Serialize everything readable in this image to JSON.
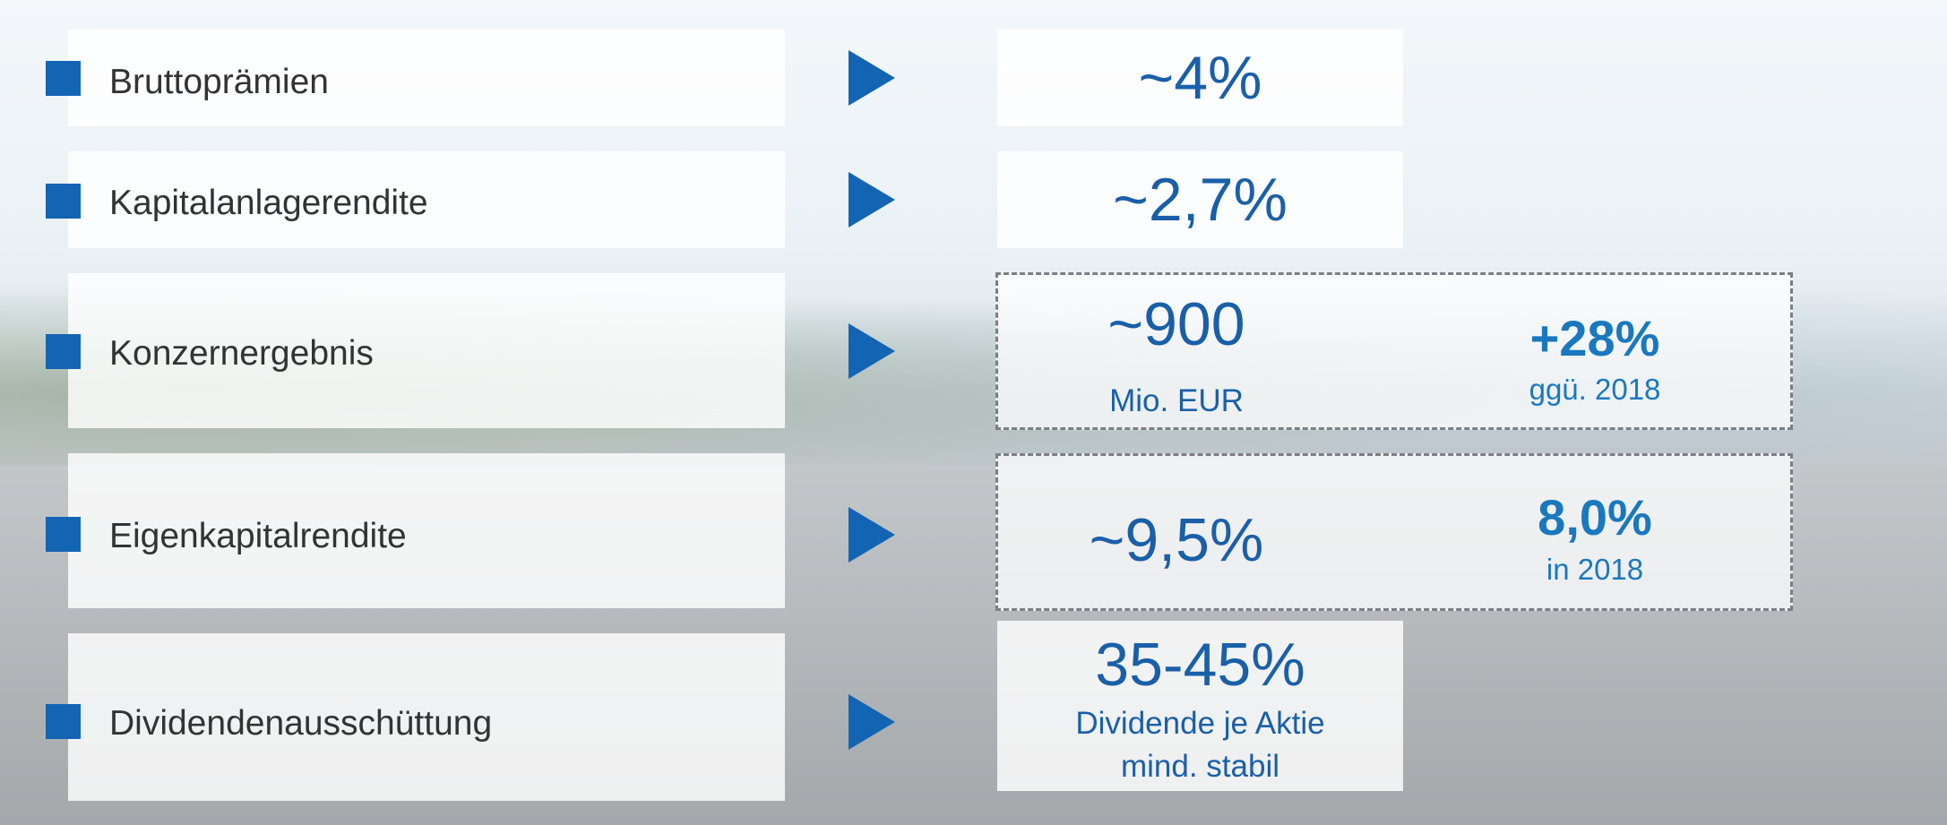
{
  "rows": [
    {
      "label": "Bruttoprämien",
      "value": "~4%"
    },
    {
      "label": "Kapitalanlagerendite",
      "value": "~2,7%"
    },
    {
      "label": "Konzernergebnis",
      "value": "~900",
      "sub": "Mio. EUR",
      "extra": "+28%",
      "extra_sub": "ggü. 2018"
    },
    {
      "label": "Eigenkapitalrendite",
      "value": "~9,5%",
      "extra": "8,0%",
      "extra_sub": "in 2018"
    },
    {
      "label": "Dividendenausschüttung",
      "value": "35-45%",
      "sub": "Dividende je Aktie",
      "sub2": "mind. stabil"
    }
  ]
}
